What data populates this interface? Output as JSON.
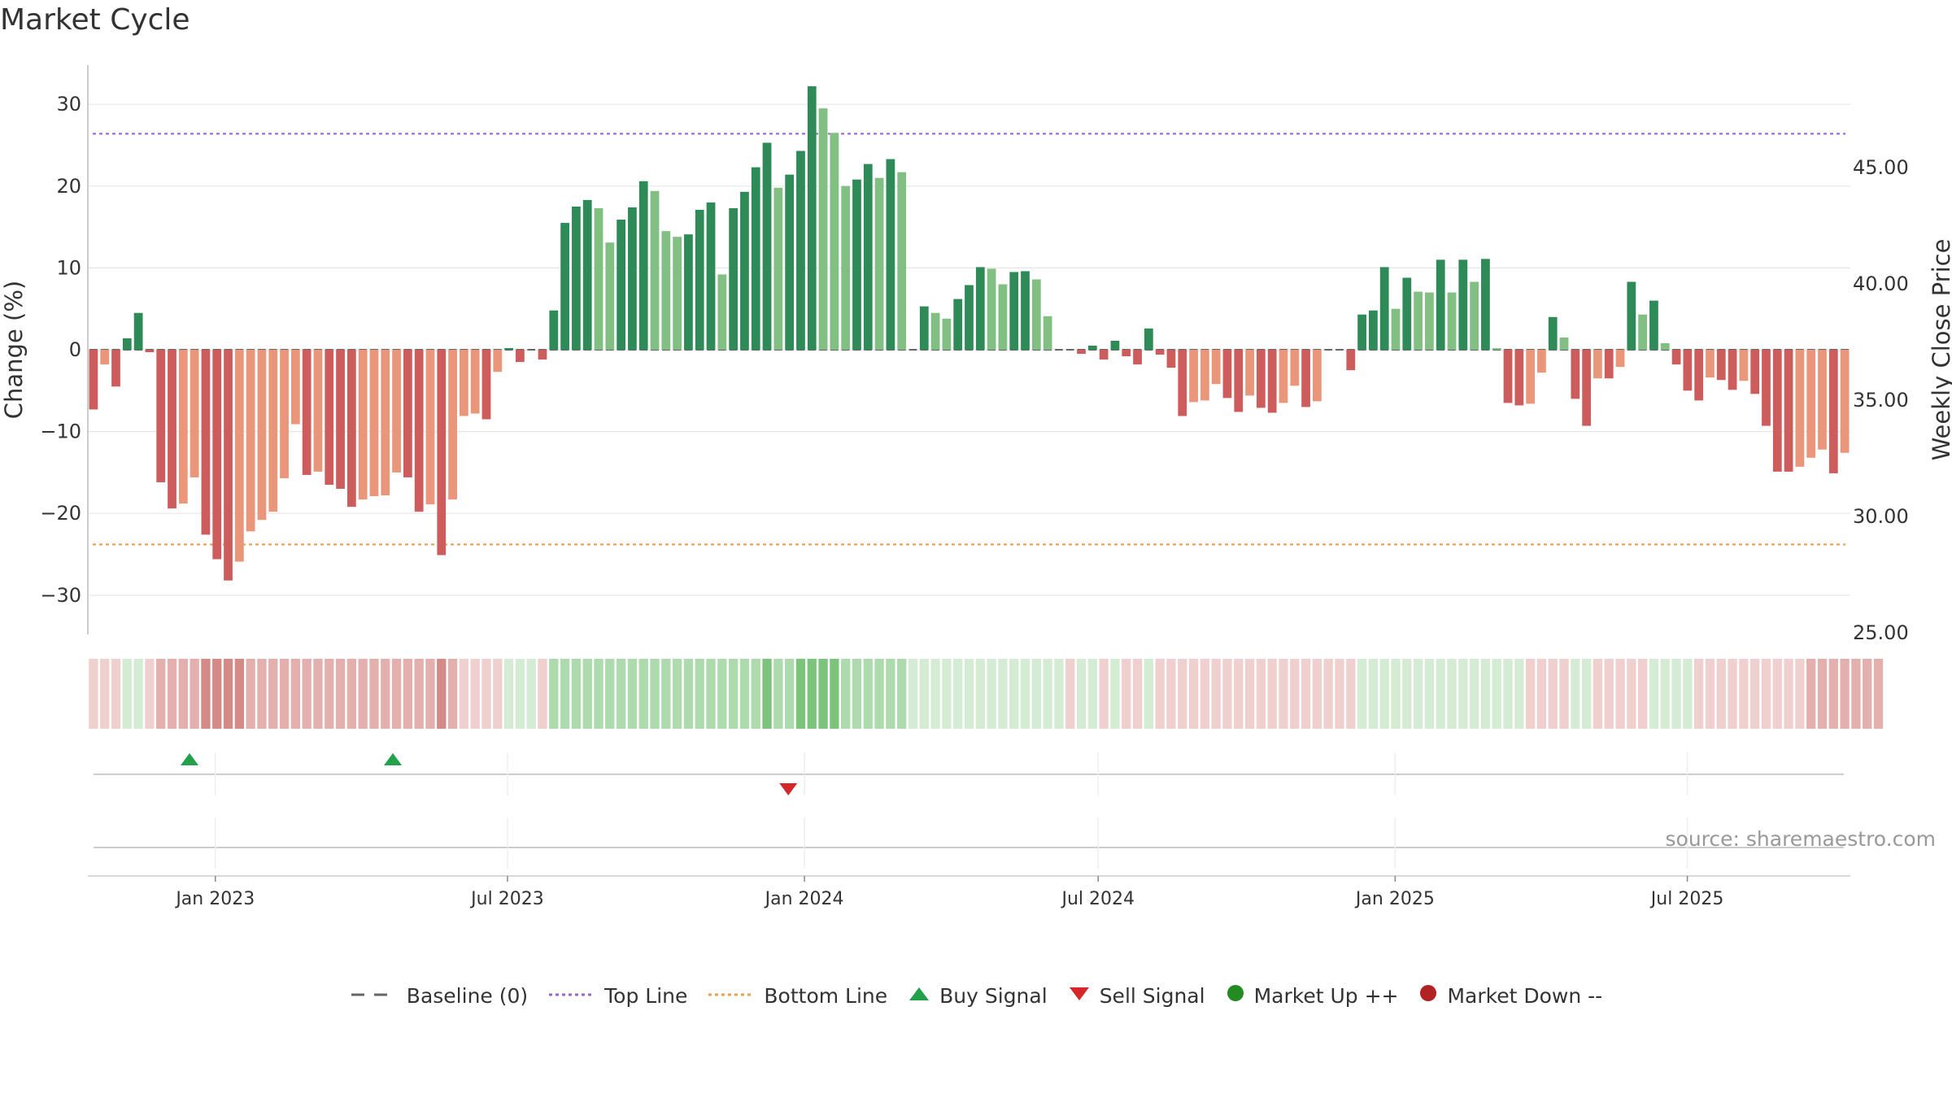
{
  "title": "Market Cycle",
  "source": "source: sharemaestro.com",
  "colors": {
    "up_dark": "#2e8b57",
    "up_light": "#82bf82",
    "down_dark": "#cd5c5c",
    "down_light": "#e9967a",
    "top_line": "#9966cc",
    "bottom_line": "#e6a050",
    "buy": "#22a04a",
    "sell": "#d62728",
    "market_up": "#228b22",
    "market_down": "#b22222",
    "baseline": "#666666"
  },
  "legend": [
    {
      "label": "Baseline (0)",
      "icon": "dash-line"
    },
    {
      "label": "Top Line",
      "icon": "dotted-purple-line"
    },
    {
      "label": "Bottom Line",
      "icon": "dotted-orange-line"
    },
    {
      "label": "Buy Signal",
      "icon": "triangle-up"
    },
    {
      "label": "Sell Signal",
      "icon": "triangle-down"
    },
    {
      "label": "Market Up ++",
      "icon": "circle-green"
    },
    {
      "label": "Market Down --",
      "icon": "circle-red"
    }
  ],
  "chart_data": {
    "type": "bar",
    "ylabel": "Change (%)",
    "ylabel_right": "Weekly Close Price",
    "ylim": [
      -35,
      35
    ],
    "yticks": [
      30,
      20,
      10,
      0,
      -10,
      -20,
      -30
    ],
    "yticks_labels": [
      "30",
      "20",
      "10",
      "0",
      "−10",
      "−20",
      "−30"
    ],
    "ylim_right": [
      25,
      48.2
    ],
    "yticks_right": [
      45,
      40,
      35,
      30,
      25
    ],
    "yticks_right_labels": [
      "45.00",
      "40.00",
      "35.00",
      "30.00",
      "25.00"
    ],
    "x_start": "2022-10-14",
    "x_end": "2025-10-10",
    "xticks": [
      {
        "date": "2023-01-01",
        "label": "Jan 2023"
      },
      {
        "date": "2023-07-01",
        "label": "Jul 2023"
      },
      {
        "date": "2024-01-01",
        "label": "Jan 2024"
      },
      {
        "date": "2024-07-01",
        "label": "Jul 2024"
      },
      {
        "date": "2025-01-01",
        "label": "Jan 2025"
      },
      {
        "date": "2025-07-01",
        "label": "Jul 2025"
      }
    ],
    "top_line": 26.4,
    "bottom_line": -23.8,
    "weekly_change": [
      -7.3,
      -1.8,
      -4.5,
      1.4,
      4.5,
      -0.3,
      -16.2,
      -19.4,
      -18.8,
      -15.6,
      -22.6,
      -25.6,
      -28.2,
      -25.9,
      -22.2,
      -20.8,
      -19.8,
      -15.7,
      -9.1,
      -15.3,
      -14.9,
      -16.5,
      -17,
      -19.2,
      -18.3,
      -17.9,
      -17.8,
      -15,
      -15.6,
      -19.8,
      -18.9,
      -25.1,
      -18.3,
      -8.1,
      -7.8,
      -8.5,
      -2.7,
      0.2,
      -1.5,
      0,
      -1.2,
      4.8,
      15.5,
      17.5,
      18.3,
      17.3,
      13.1,
      15.9,
      17.4,
      20.6,
      19.4,
      14.5,
      13.8,
      14.1,
      17.1,
      18,
      9.2,
      17.3,
      19.3,
      22.3,
      25.3,
      19.8,
      21.4,
      24.3,
      32.2,
      29.5,
      26.5,
      20,
      20.8,
      22.7,
      21,
      23.3,
      21.7,
      0,
      5.3,
      4.5,
      3.8,
      6.2,
      7.9,
      10.1,
      9.9,
      8,
      9.5,
      9.6,
      8.6,
      4.1,
      0,
      0,
      -0.5,
      0.5,
      -1.2,
      1.1,
      -0.8,
      -1.8,
      2.6,
      -0.6,
      -2.2,
      -8.1,
      -6.4,
      -6.2,
      -4.2,
      -5.9,
      -7.6,
      -5.6,
      -7.1,
      -7.7,
      -6.5,
      -4.4,
      -7,
      -6.3,
      0,
      0,
      -2.5,
      4.3,
      4.8,
      10.1,
      5,
      8.8,
      7.1,
      7,
      11,
      7,
      11,
      8.3,
      11.1,
      0.2,
      -6.5,
      -6.8,
      -6.6,
      -2.8,
      4,
      1.5,
      -6,
      -9.3,
      -3.5,
      -3.5,
      -2.1,
      8.3,
      4.3,
      6,
      0.8,
      -1.8,
      -5,
      -6.2,
      -3.4,
      -3.7,
      -4.9,
      -3.8,
      -5.4,
      -9.3,
      -14.9,
      -14.9,
      -14.3,
      -13.2,
      -12.2,
      -15.1,
      -12.6
    ],
    "regime_strength": [
      -1,
      -1,
      -1,
      1,
      1,
      -1,
      -2,
      -2,
      -2,
      -2,
      -3,
      -3,
      -3,
      -3,
      -2,
      -2,
      -2,
      -2,
      -2,
      -2,
      -2,
      -2,
      -2,
      -2,
      -2,
      -2,
      -2,
      -2,
      -2,
      -2,
      -2,
      -3,
      -2,
      -1,
      -1,
      -1,
      -1,
      1,
      1,
      1,
      -1,
      2,
      2,
      2,
      2,
      2,
      2,
      2,
      2,
      2,
      2,
      2,
      2,
      2,
      2,
      2,
      2,
      2,
      2,
      2,
      3,
      2,
      2,
      3,
      3,
      3,
      3,
      2,
      2,
      2,
      2,
      2,
      2,
      1,
      1,
      1,
      1,
      1,
      1,
      1,
      1,
      1,
      1,
      1,
      1,
      1,
      1,
      -1,
      1,
      1,
      -1,
      1,
      -1,
      -1,
      1,
      -1,
      -1,
      -1,
      -1,
      -1,
      -1,
      -1,
      -1,
      -1,
      -1,
      -1,
      -1,
      -1,
      -1,
      -1,
      -1,
      -1,
      -1,
      1,
      1,
      1,
      1,
      1,
      1,
      1,
      1,
      1,
      1,
      1,
      1,
      1,
      1,
      1,
      -1,
      -1,
      -1,
      -1,
      1,
      1,
      -1,
      -1,
      -1,
      -1,
      -1,
      1,
      1,
      1,
      1,
      -1,
      -1,
      -1,
      -1,
      -1,
      -1,
      -1,
      -1,
      -1,
      -1,
      -2,
      -2,
      -2,
      -2,
      -2,
      -2,
      -2
    ],
    "buy_signals": [
      "2022-12-16",
      "2023-04-21"
    ],
    "sell_signals": [
      "2023-12-22"
    ],
    "market_up_signals": [],
    "market_down_signals": []
  }
}
